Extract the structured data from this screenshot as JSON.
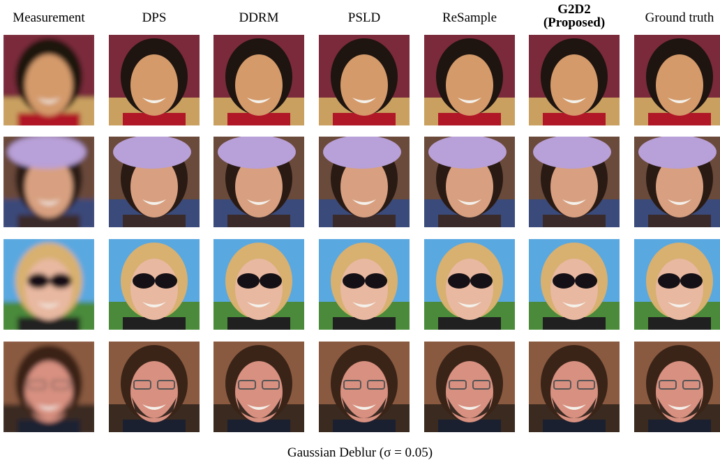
{
  "columns": [
    {
      "label": "Measurement"
    },
    {
      "label": "DPS"
    },
    {
      "label": "DDRM"
    },
    {
      "label": "PSLD"
    },
    {
      "label": "ReSample"
    },
    {
      "label": "G2D2",
      "sublabel": "(Proposed)"
    },
    {
      "label": "Ground truth"
    }
  ],
  "caption": "Gaussian Deblur (σ = 0.05)"
}
